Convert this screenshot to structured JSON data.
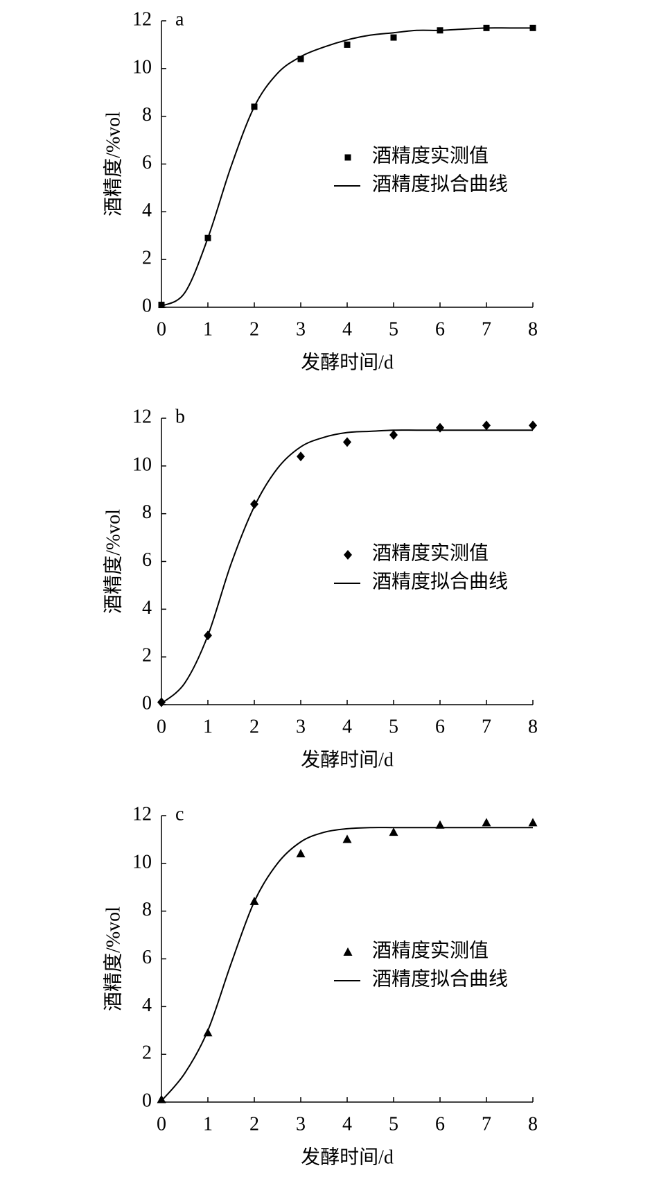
{
  "chart_data": [
    {
      "type": "scatter",
      "title": "a",
      "xlabel": "发酵时间/d",
      "ylabel": "酒精度/%vol",
      "xlim": [
        0,
        8
      ],
      "xticks": [
        0,
        1,
        2,
        3,
        4,
        5,
        6,
        7,
        8
      ],
      "ylim": [
        0,
        12
      ],
      "yticks": [
        0,
        2,
        4,
        6,
        8,
        10,
        12
      ],
      "legend": "center right",
      "series": [
        {
          "name": "酒精度实测值",
          "style": "scatter",
          "marker": "square",
          "color": "#000000",
          "x": [
            0,
            1,
            2,
            3,
            4,
            5,
            6,
            7,
            8
          ],
          "values": [
            0.1,
            2.9,
            8.4,
            10.4,
            11.0,
            11.3,
            11.6,
            11.7,
            11.7
          ]
        },
        {
          "name": "酒精度拟合曲线",
          "style": "line",
          "color": "#000000",
          "x": [
            0,
            0.5,
            1,
            1.5,
            2,
            2.5,
            3,
            3.5,
            4,
            4.5,
            5,
            5.5,
            6,
            6.5,
            7,
            7.5,
            8
          ],
          "values": [
            0.05,
            0.6,
            2.9,
            5.9,
            8.4,
            9.8,
            10.5,
            10.9,
            11.2,
            11.4,
            11.5,
            11.6,
            11.6,
            11.65,
            11.7,
            11.7,
            11.7
          ]
        }
      ]
    },
    {
      "type": "scatter",
      "title": "b",
      "xlabel": "发酵时间/d",
      "ylabel": "酒精度/%vol",
      "xlim": [
        0,
        8
      ],
      "xticks": [
        0,
        1,
        2,
        3,
        4,
        5,
        6,
        7,
        8
      ],
      "ylim": [
        0,
        12
      ],
      "yticks": [
        0,
        2,
        4,
        6,
        8,
        10,
        12
      ],
      "legend": "center right",
      "series": [
        {
          "name": "酒精度实测值",
          "style": "scatter",
          "marker": "diamond",
          "color": "#000000",
          "x": [
            0,
            1,
            2,
            3,
            4,
            5,
            6,
            7,
            8
          ],
          "values": [
            0.1,
            2.9,
            8.4,
            10.4,
            11.0,
            11.3,
            11.6,
            11.7,
            11.7
          ]
        },
        {
          "name": "酒精度拟合曲线",
          "style": "line",
          "color": "#000000",
          "x": [
            0,
            0.5,
            1,
            1.5,
            2,
            2.5,
            3,
            3.5,
            4,
            4.5,
            5,
            5.5,
            6,
            6.5,
            7,
            7.5,
            8
          ],
          "values": [
            0.05,
            0.9,
            2.9,
            5.9,
            8.3,
            9.9,
            10.8,
            11.2,
            11.4,
            11.45,
            11.5,
            11.5,
            11.5,
            11.5,
            11.5,
            11.5,
            11.5
          ]
        }
      ]
    },
    {
      "type": "scatter",
      "title": "c",
      "xlabel": "发酵时间/d",
      "ylabel": "酒精度/%vol",
      "xlim": [
        0,
        8
      ],
      "xticks": [
        0,
        1,
        2,
        3,
        4,
        5,
        6,
        7,
        8
      ],
      "ylim": [
        0,
        12
      ],
      "yticks": [
        0,
        2,
        4,
        6,
        8,
        10,
        12
      ],
      "legend": "center right",
      "series": [
        {
          "name": "酒精度实测值",
          "style": "scatter",
          "marker": "triangle",
          "color": "#000000",
          "x": [
            0,
            1,
            2,
            3,
            4,
            5,
            6,
            7,
            8
          ],
          "values": [
            0.1,
            2.9,
            8.4,
            10.4,
            11.0,
            11.3,
            11.6,
            11.7,
            11.7
          ]
        },
        {
          "name": "酒精度拟合曲线",
          "style": "line",
          "color": "#000000",
          "x": [
            0,
            0.5,
            1,
            1.5,
            2,
            2.5,
            3,
            3.5,
            4,
            4.5,
            5,
            5.5,
            6,
            6.5,
            7,
            7.5,
            8
          ],
          "values": [
            0.05,
            1.2,
            3.0,
            5.8,
            8.4,
            10.0,
            10.9,
            11.3,
            11.45,
            11.5,
            11.5,
            11.5,
            11.5,
            11.5,
            11.5,
            11.5,
            11.5
          ]
        }
      ]
    }
  ]
}
